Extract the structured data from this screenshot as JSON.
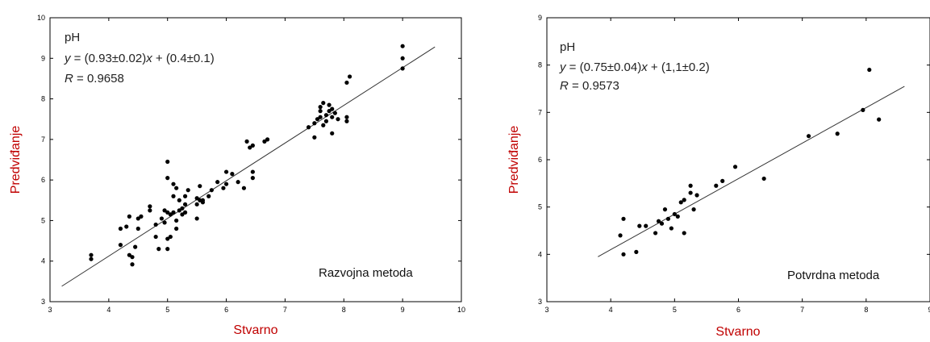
{
  "chart_data": [
    {
      "type": "scatter",
      "xlabel": "Stvarno",
      "ylabel": "Predviđanje",
      "xlim": [
        3,
        10
      ],
      "ylim": [
        3,
        10
      ],
      "xticks": [
        "3",
        "4",
        "5",
        "6",
        "7",
        "8",
        "9",
        "10"
      ],
      "yticks": [
        "3",
        "4",
        "5",
        "6",
        "7",
        "8",
        "9",
        "10"
      ],
      "annotation": {
        "title": "pH",
        "eq_y": "y",
        "eq_mid": " = (0.93±0.02)",
        "eq_x": "x",
        "eq_end": " + (0.4±0.1)",
        "r_label": "R",
        "r_value": " = 0.9658"
      },
      "method": "Razvojna metoda",
      "fit_line": {
        "x": [
          3.2,
          9.55
        ],
        "y": [
          3.38,
          9.28
        ]
      },
      "points": [
        [
          3.7,
          4.15
        ],
        [
          3.7,
          4.05
        ],
        [
          4.2,
          4.4
        ],
        [
          4.2,
          4.8
        ],
        [
          4.3,
          4.85
        ],
        [
          4.35,
          5.1
        ],
        [
          4.35,
          4.15
        ],
        [
          4.4,
          4.1
        ],
        [
          4.4,
          3.92
        ],
        [
          4.45,
          4.35
        ],
        [
          4.5,
          4.8
        ],
        [
          4.5,
          5.05
        ],
        [
          4.55,
          5.1
        ],
        [
          4.7,
          5.25
        ],
        [
          4.7,
          5.35
        ],
        [
          4.8,
          4.6
        ],
        [
          4.8,
          4.9
        ],
        [
          4.85,
          4.3
        ],
        [
          4.9,
          5.05
        ],
        [
          4.95,
          5.25
        ],
        [
          4.95,
          4.95
        ],
        [
          5.0,
          5.2
        ],
        [
          5.0,
          4.55
        ],
        [
          5.0,
          4.3
        ],
        [
          5.0,
          6.05
        ],
        [
          5.0,
          6.45
        ],
        [
          5.05,
          5.15
        ],
        [
          5.05,
          4.6
        ],
        [
          5.1,
          5.2
        ],
        [
          5.1,
          5.6
        ],
        [
          5.1,
          5.9
        ],
        [
          5.15,
          5.8
        ],
        [
          5.15,
          5.0
        ],
        [
          5.15,
          4.8
        ],
        [
          5.2,
          5.25
        ],
        [
          5.2,
          5.5
        ],
        [
          5.25,
          5.3
        ],
        [
          5.25,
          5.15
        ],
        [
          5.3,
          5.4
        ],
        [
          5.3,
          5.6
        ],
        [
          5.3,
          5.2
        ],
        [
          5.35,
          5.75
        ],
        [
          5.5,
          5.55
        ],
        [
          5.5,
          5.4
        ],
        [
          5.5,
          5.05
        ],
        [
          5.55,
          5.5
        ],
        [
          5.55,
          5.85
        ],
        [
          5.6,
          5.45
        ],
        [
          5.6,
          5.5
        ],
        [
          5.7,
          5.6
        ],
        [
          5.75,
          5.75
        ],
        [
          5.85,
          5.95
        ],
        [
          5.95,
          5.8
        ],
        [
          6.0,
          6.2
        ],
        [
          6.0,
          5.9
        ],
        [
          6.1,
          6.15
        ],
        [
          6.2,
          5.95
        ],
        [
          6.3,
          5.8
        ],
        [
          6.35,
          6.95
        ],
        [
          6.4,
          6.8
        ],
        [
          6.45,
          6.85
        ],
        [
          6.45,
          6.2
        ],
        [
          6.45,
          6.05
        ],
        [
          6.65,
          6.95
        ],
        [
          6.7,
          7.0
        ],
        [
          7.4,
          7.3
        ],
        [
          7.5,
          7.4
        ],
        [
          7.5,
          7.05
        ],
        [
          7.55,
          7.5
        ],
        [
          7.6,
          7.55
        ],
        [
          7.6,
          7.7
        ],
        [
          7.6,
          7.8
        ],
        [
          7.65,
          7.9
        ],
        [
          7.65,
          7.35
        ],
        [
          7.7,
          7.6
        ],
        [
          7.7,
          7.45
        ],
        [
          7.75,
          7.85
        ],
        [
          7.75,
          7.7
        ],
        [
          7.8,
          7.75
        ],
        [
          7.8,
          7.55
        ],
        [
          7.8,
          7.15
        ],
        [
          7.85,
          7.65
        ],
        [
          7.9,
          7.5
        ],
        [
          8.05,
          7.55
        ],
        [
          8.05,
          7.45
        ],
        [
          8.05,
          8.4
        ],
        [
          8.1,
          8.55
        ],
        [
          9.0,
          9.3
        ],
        [
          9.0,
          9.0
        ],
        [
          9.0,
          8.75
        ]
      ]
    },
    {
      "type": "scatter",
      "xlabel": "Stvarno",
      "ylabel": "Predviđanje",
      "xlim": [
        3,
        9
      ],
      "ylim": [
        3,
        9
      ],
      "xticks": [
        "3",
        "4",
        "5",
        "6",
        "7",
        "8",
        "9"
      ],
      "yticks": [
        "3",
        "4",
        "5",
        "6",
        "7",
        "8",
        "9"
      ],
      "annotation": {
        "title": "pH",
        "eq_y": "y",
        "eq_mid": " = (0.75±0.04)",
        "eq_x": "x",
        "eq_end": " + (1,1±0.2)",
        "r_label": "R",
        "r_value": " = 0.9573"
      },
      "method": "Potvrdna metoda",
      "fit_line": {
        "x": [
          3.8,
          8.6
        ],
        "y": [
          3.95,
          7.55
        ]
      },
      "points": [
        [
          4.15,
          4.4
        ],
        [
          4.2,
          4.75
        ],
        [
          4.2,
          4.0
        ],
        [
          4.4,
          4.05
        ],
        [
          4.45,
          4.6
        ],
        [
          4.55,
          4.6
        ],
        [
          4.7,
          4.45
        ],
        [
          4.75,
          4.7
        ],
        [
          4.8,
          4.65
        ],
        [
          4.85,
          4.95
        ],
        [
          4.9,
          4.75
        ],
        [
          4.95,
          4.55
        ],
        [
          5.0,
          4.85
        ],
        [
          5.05,
          4.8
        ],
        [
          5.1,
          5.1
        ],
        [
          5.15,
          5.15
        ],
        [
          5.15,
          4.45
        ],
        [
          5.25,
          5.3
        ],
        [
          5.25,
          5.45
        ],
        [
          5.3,
          4.95
        ],
        [
          5.35,
          5.25
        ],
        [
          5.65,
          5.45
        ],
        [
          5.75,
          5.55
        ],
        [
          5.95,
          5.85
        ],
        [
          6.4,
          5.6
        ],
        [
          7.1,
          6.5
        ],
        [
          7.55,
          6.55
        ],
        [
          7.95,
          7.05
        ],
        [
          8.05,
          7.9
        ],
        [
          8.2,
          6.85
        ]
      ]
    }
  ]
}
